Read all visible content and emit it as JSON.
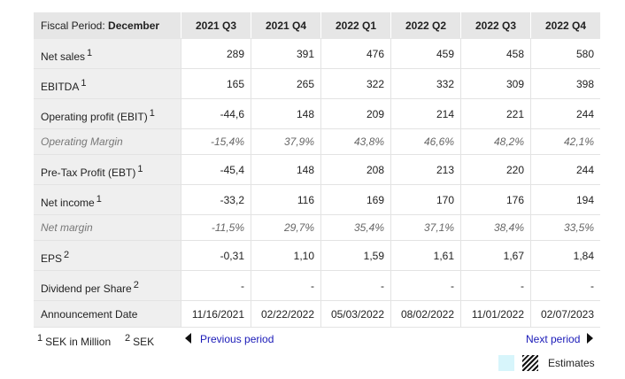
{
  "header": {
    "period_label": "Fiscal Period:",
    "period_value": "December",
    "columns": [
      "2021 Q3",
      "2021 Q4",
      "2022 Q1",
      "2022 Q2",
      "2022 Q3",
      "2022 Q4"
    ]
  },
  "rows": [
    {
      "label": "Net sales",
      "sup": "1",
      "values": [
        "289",
        "391",
        "476",
        "459",
        "458",
        "580"
      ]
    },
    {
      "label": "EBITDA",
      "sup": "1",
      "values": [
        "165",
        "265",
        "322",
        "332",
        "309",
        "398"
      ]
    },
    {
      "label": "Operating profit (EBIT)",
      "sup": "1",
      "values": [
        "-44,6",
        "148",
        "209",
        "214",
        "221",
        "244"
      ]
    },
    {
      "label": "Operating Margin",
      "sup": "",
      "values": [
        "-15,4%",
        "37,9%",
        "43,8%",
        "46,6%",
        "48,2%",
        "42,1%"
      ]
    },
    {
      "label": "Pre-Tax Profit (EBT)",
      "sup": "1",
      "values": [
        "-45,4",
        "148",
        "208",
        "213",
        "220",
        "244"
      ]
    },
    {
      "label": "Net income",
      "sup": "1",
      "values": [
        "-33,2",
        "116",
        "169",
        "170",
        "176",
        "194"
      ]
    },
    {
      "label": "Net margin",
      "sup": "",
      "values": [
        "-11,5%",
        "29,7%",
        "35,4%",
        "37,1%",
        "38,4%",
        "33,5%"
      ]
    },
    {
      "label": "EPS",
      "sup": "2",
      "values": [
        "-0,31",
        "1,10",
        "1,59",
        "1,61",
        "1,67",
        "1,84"
      ]
    },
    {
      "label": "Dividend per Share",
      "sup": "2",
      "values": [
        "-",
        "-",
        "-",
        "-",
        "-",
        "-"
      ]
    },
    {
      "label": "Announcement Date",
      "sup": "",
      "values": [
        "11/16/2021",
        "02/22/2022",
        "05/03/2022",
        "08/02/2022",
        "11/01/2022",
        "02/07/2023"
      ]
    }
  ],
  "footnotes": {
    "n1_mark": "1",
    "n1_text": "SEK in Million",
    "n2_mark": "2",
    "n2_text": "SEK"
  },
  "nav": {
    "previous": "Previous period",
    "next": "Next period"
  },
  "legend": {
    "estimates": "Estimates",
    "actual_color": "#d7f5fb"
  }
}
